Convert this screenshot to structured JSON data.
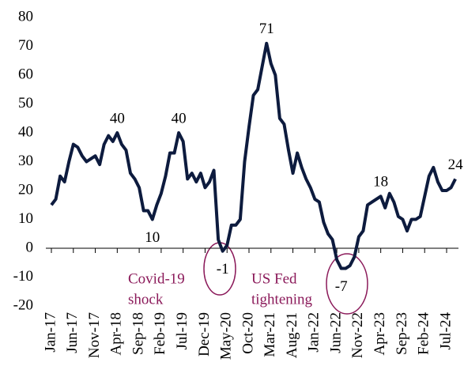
{
  "chart_data": {
    "type": "line",
    "categories": [
      "Jan-17",
      null,
      null,
      null,
      null,
      "Jun-17",
      null,
      null,
      null,
      null,
      "Nov-17",
      null,
      null,
      null,
      null,
      "Apr-18",
      null,
      null,
      null,
      null,
      "Sep-18",
      null,
      null,
      null,
      null,
      "Feb-19",
      null,
      null,
      null,
      null,
      "Jul-19",
      null,
      null,
      null,
      null,
      "Dec-19",
      null,
      null,
      null,
      null,
      "May-20",
      null,
      null,
      null,
      null,
      "Oct-20",
      null,
      null,
      null,
      null,
      "Mar-21",
      null,
      null,
      null,
      null,
      "Aug-21",
      null,
      null,
      null,
      null,
      "Jan-22",
      null,
      null,
      null,
      null,
      "Jun-22",
      null,
      null,
      null,
      null,
      "Nov-22",
      null,
      null,
      null,
      null,
      "Apr-23",
      null,
      null,
      null,
      null,
      "Sep-23",
      null,
      null,
      null,
      null,
      "Feb-24",
      null,
      null,
      null,
      null,
      "Jul-24",
      null,
      null
    ],
    "values": [
      15,
      17,
      25,
      23,
      30,
      36,
      35,
      32,
      30,
      31,
      32,
      29,
      36,
      39,
      37,
      40,
      36,
      34,
      26,
      24,
      21,
      13,
      13,
      10,
      15,
      19,
      25,
      33,
      33,
      40,
      37,
      24,
      26,
      23,
      26,
      21,
      23,
      27,
      3,
      -1,
      1,
      8,
      8,
      10,
      30,
      42,
      53,
      55,
      63,
      71,
      64,
      60,
      45,
      43,
      34,
      26,
      33,
      28,
      24,
      21,
      17,
      16,
      9,
      5,
      3,
      -4,
      -7,
      -7,
      -6,
      -3,
      4,
      6,
      15,
      16,
      17,
      18,
      14,
      19,
      16,
      11,
      10,
      6,
      10,
      10,
      11,
      18,
      25,
      28,
      23,
      20,
      20,
      21,
      24
    ],
    "value_labels": [
      null,
      null,
      null,
      null,
      null,
      null,
      null,
      null,
      null,
      null,
      null,
      null,
      null,
      null,
      null,
      "40",
      null,
      null,
      null,
      null,
      null,
      null,
      null,
      "10",
      null,
      null,
      null,
      null,
      null,
      "40",
      null,
      null,
      null,
      null,
      null,
      null,
      null,
      null,
      null,
      "-1",
      null,
      null,
      null,
      null,
      null,
      null,
      null,
      null,
      null,
      "71",
      null,
      null,
      null,
      null,
      null,
      null,
      null,
      null,
      null,
      null,
      null,
      null,
      null,
      null,
      null,
      null,
      "-7",
      null,
      null,
      null,
      null,
      null,
      null,
      null,
      null,
      "18",
      null,
      null,
      null,
      null,
      null,
      null,
      null,
      null,
      null,
      null,
      null,
      null,
      null,
      null,
      null,
      null,
      "24"
    ],
    "color": "#0d1b3e",
    "ylim": [
      -20,
      80
    ],
    "yticks": [
      -20,
      -10,
      0,
      10,
      20,
      30,
      40,
      50,
      60,
      70,
      80
    ],
    "annotations": [
      "Covid-19",
      "shock",
      "US Fed",
      "tightening"
    ]
  }
}
